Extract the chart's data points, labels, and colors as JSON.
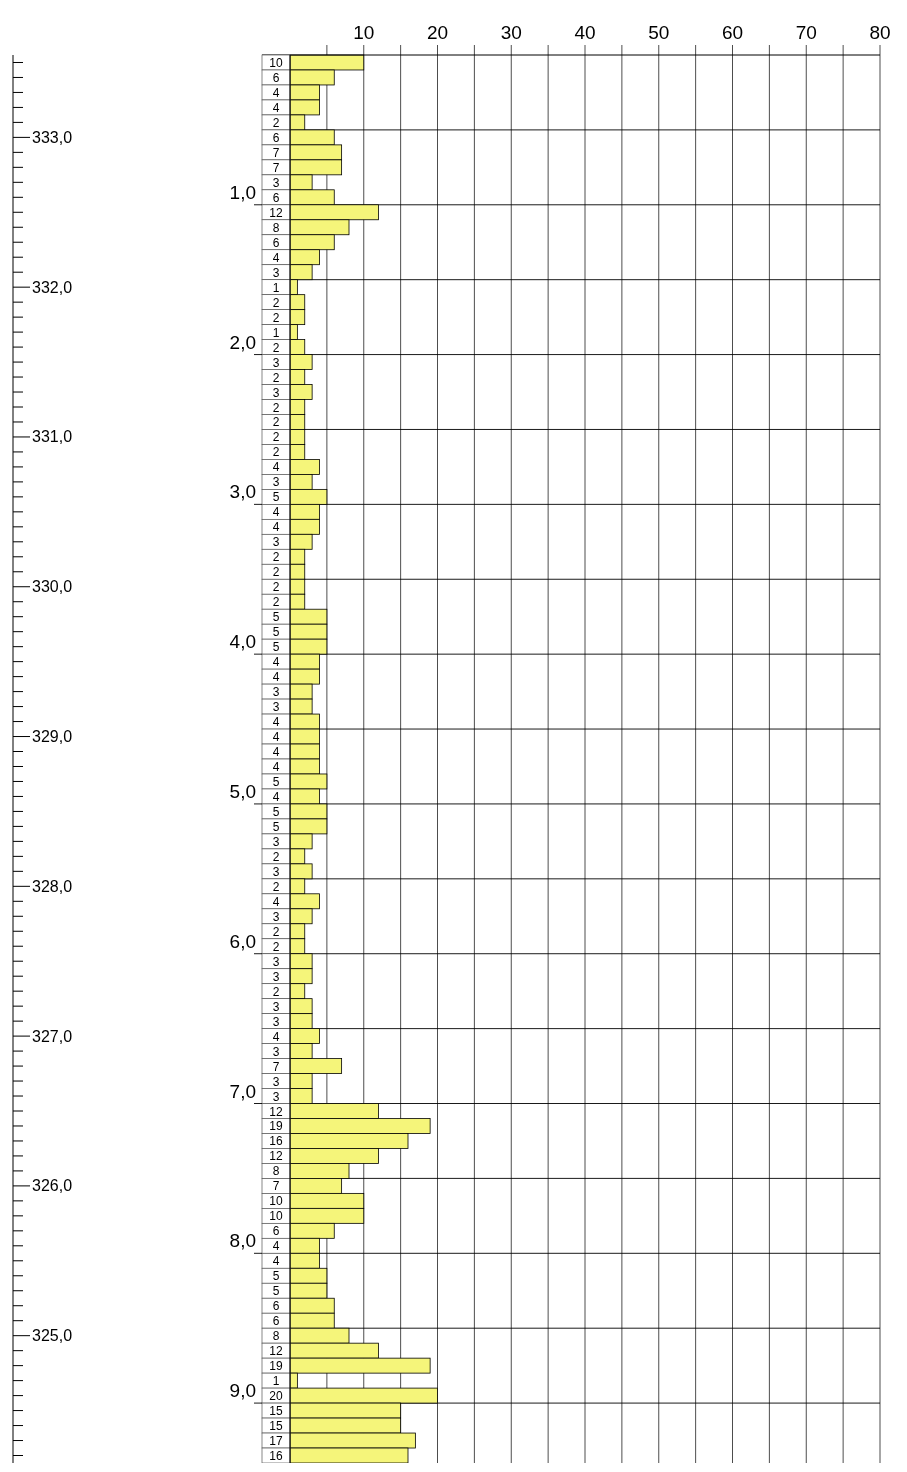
{
  "chart_data": {
    "type": "bar",
    "orientation": "horizontal",
    "color": "#f5f57a",
    "data_labels": true,
    "grid": true,
    "x": [
      0.05,
      0.15,
      0.25,
      0.35,
      0.45,
      0.55,
      0.65,
      0.75,
      0.85,
      0.95,
      1.05,
      1.15,
      1.25,
      1.35,
      1.45,
      1.55,
      1.65,
      1.75,
      1.85,
      1.95,
      2.05,
      2.15,
      2.25,
      2.35,
      2.45,
      2.55,
      2.65,
      2.75,
      2.85,
      2.95,
      3.05,
      3.15,
      3.25,
      3.35,
      3.45,
      3.55,
      3.65,
      3.75,
      3.85,
      3.95,
      4.05,
      4.15,
      4.25,
      4.35,
      4.45,
      4.55,
      4.65,
      4.75,
      4.85,
      4.95,
      5.05,
      5.15,
      5.25,
      5.35,
      5.45,
      5.55,
      5.65,
      5.75,
      5.85,
      5.95,
      6.05,
      6.15,
      6.25,
      6.35,
      6.45,
      6.55,
      6.65,
      6.75,
      6.85,
      6.95,
      7.05,
      7.15,
      7.25,
      7.35,
      7.45,
      7.55,
      7.65,
      7.75,
      7.85,
      7.95,
      8.05,
      8.15,
      8.25,
      8.35,
      8.45,
      8.55,
      8.65,
      8.75,
      8.85,
      8.95,
      9.05,
      9.15,
      9.25,
      9.35
    ],
    "values": [
      10,
      6,
      4,
      4,
      2,
      6,
      7,
      7,
      3,
      6,
      12,
      8,
      6,
      4,
      3,
      1,
      2,
      2,
      1,
      2,
      3,
      2,
      3,
      2,
      2,
      2,
      2,
      4,
      3,
      5,
      4,
      4,
      3,
      2,
      2,
      2,
      2,
      5,
      5,
      5,
      4,
      4,
      3,
      3,
      4,
      4,
      4,
      4,
      5,
      4,
      5,
      5,
      3,
      2,
      3,
      2,
      4,
      3,
      2,
      2,
      3,
      3,
      2,
      3,
      3,
      4,
      3,
      7,
      3,
      3,
      12,
      19,
      16,
      12,
      8,
      7,
      10,
      10,
      6,
      4,
      4,
      5,
      5,
      6,
      6,
      8,
      12,
      19,
      1,
      20,
      15,
      15,
      17,
      16
    ],
    "x2lim": [
      0,
      80
    ],
    "x2ticks": [
      {
        "value": 5,
        "label": null
      },
      10,
      {
        "value": 15,
        "label": null
      },
      20,
      {
        "value": 25,
        "label": null
      },
      30,
      {
        "value": 35,
        "label": null
      },
      40,
      {
        "value": 45,
        "label": null
      },
      50,
      {
        "value": 55,
        "label": null
      },
      60,
      {
        "value": 65,
        "label": null
      },
      70,
      {
        "value": 75,
        "label": null
      },
      80
    ],
    "ylim": [
      9.4,
      0
    ],
    "yticks": [
      {
        "value": 0.5,
        "label": null
      },
      {
        "value": 1,
        "label": "1,0"
      },
      {
        "value": 1.5,
        "label": null
      },
      {
        "value": 2,
        "label": "2,0"
      },
      {
        "value": 2.5,
        "label": null
      },
      {
        "value": 3,
        "label": "3,0"
      },
      {
        "value": 3.5,
        "label": null
      },
      {
        "value": 4,
        "label": "4,0"
      },
      {
        "value": 4.5,
        "label": null
      },
      {
        "value": 5,
        "label": "5,0"
      },
      {
        "value": 5.5,
        "label": null
      },
      {
        "value": 6,
        "label": "6,0"
      },
      {
        "value": 6.5,
        "label": null
      },
      {
        "value": 7,
        "label": "7,0"
      },
      {
        "value": 7.5,
        "label": null
      },
      {
        "value": 8,
        "label": "8,0"
      },
      {
        "value": 8.5,
        "label": null
      },
      {
        "value": 9,
        "label": "9,0"
      }
    ],
    "y2lim": [
      324.15,
      333.55
    ],
    "y2ticks": [
      {
        "value": 333,
        "label": "333,0"
      },
      {
        "value": 332,
        "label": "332,0"
      },
      {
        "value": 331,
        "label": "331,0"
      },
      {
        "value": 330,
        "label": "330,0"
      },
      {
        "value": 329,
        "label": "329,0"
      },
      {
        "value": 328,
        "label": "328,0"
      },
      {
        "value": 327,
        "label": "327,0"
      },
      {
        "value": 326,
        "label": "326,0"
      },
      {
        "value": 325,
        "label": "325,0"
      }
    ]
  }
}
